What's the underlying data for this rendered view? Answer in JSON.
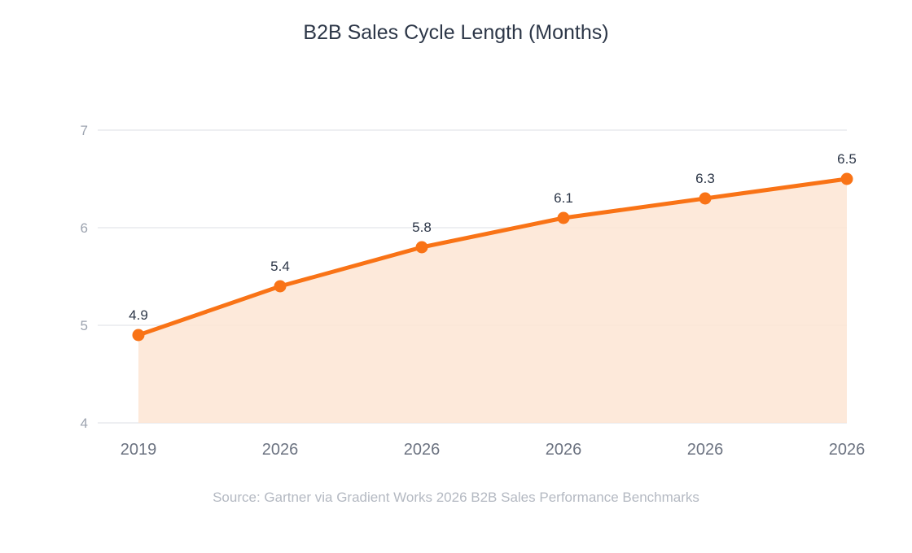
{
  "chart_data": {
    "type": "area",
    "title": "B2B Sales Cycle Length (Months)",
    "source": "Source: Gartner via Gradient Works 2026 B2B Sales Performance Benchmarks",
    "categories": [
      "2019",
      "2026",
      "2026",
      "2026",
      "2026",
      "2026"
    ],
    "values": [
      4.9,
      5.4,
      5.8,
      6.1,
      6.3,
      6.5
    ],
    "data_labels": [
      "4.9",
      "5.4",
      "5.8",
      "6.1",
      "6.3",
      "6.5"
    ],
    "ylim": [
      4,
      7
    ],
    "yticks": [
      "4",
      "5",
      "6",
      "7"
    ],
    "xlabel": "",
    "ylabel": "",
    "grid": true,
    "legend": "none",
    "colors": {
      "line": "#f97316",
      "fill": "#fde5d4",
      "grid": "#eeeff2",
      "tick_text": "#9ca3af",
      "xtick_text": "#6b7280",
      "label_text": "#2d3748"
    }
  }
}
